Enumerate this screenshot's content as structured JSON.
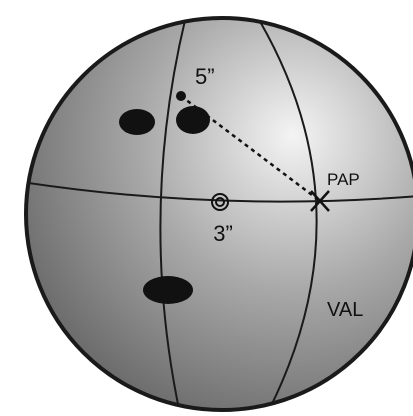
{
  "diagram": {
    "labels": {
      "pap": "PAP",
      "val": "VAL",
      "distance_to_pap": "5”",
      "distance_to_center": "3”"
    },
    "colors": {
      "ball_light": "#f4f4f4",
      "ball_mid": "#a9a9a9",
      "ball_dark": "#5c5c5c",
      "outline": "#1a1a1a",
      "holes": "#111111"
    },
    "icons": {
      "pap_marker": "x-mark-icon",
      "center_marker": "double-circle-icon",
      "reference_point": "dot-icon"
    }
  }
}
